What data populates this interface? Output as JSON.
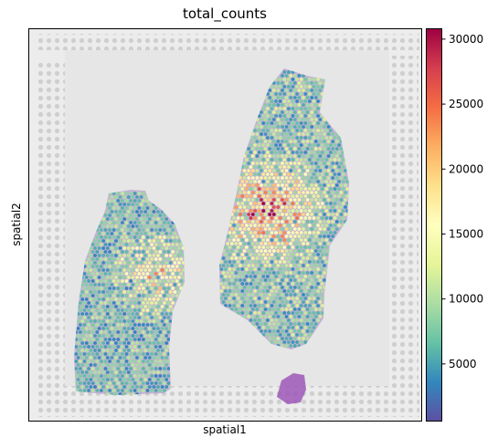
{
  "chart_data": {
    "type": "scatter",
    "title": "total_counts",
    "xlabel": "spatial1",
    "ylabel": "spatial2",
    "colorbar": {
      "label": "",
      "colormap": "Spectral_r",
      "range": [
        600,
        30800
      ],
      "ticks": [
        5000,
        10000,
        15000,
        20000,
        25000,
        30000
      ],
      "tick_labels": [
        "5000",
        "10000",
        "15000",
        "20000",
        "25000",
        "30000"
      ]
    },
    "background": "H&E tissue image with fiducial frame",
    "regions": [
      {
        "name": "left tissue section",
        "typical_value": 9000,
        "max_value": 22000
      },
      {
        "name": "right tissue section",
        "typical_value": 10000,
        "max_value": 30000
      }
    ]
  },
  "colors": {
    "low": "#5e4fa2",
    "mid": "#ffffbf",
    "high": "#9e0142"
  }
}
